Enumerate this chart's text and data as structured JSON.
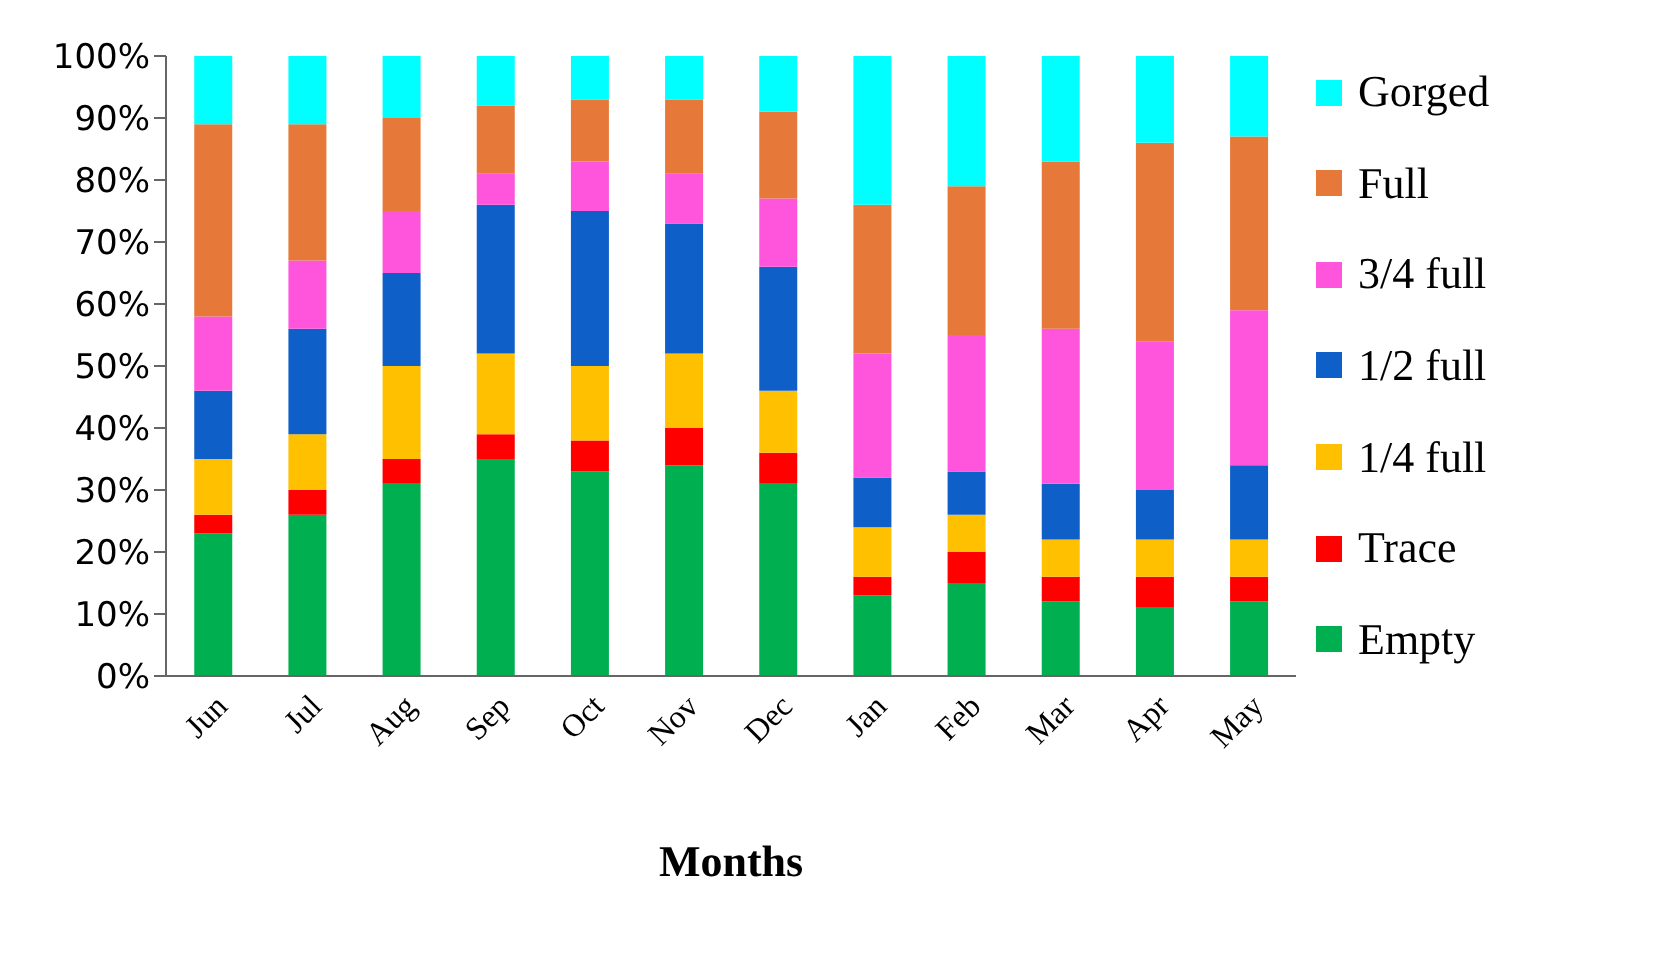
{
  "chart_data": {
    "type": "bar",
    "stacked": true,
    "xlabel": "Months",
    "categories": [
      "Jun",
      "Jul",
      "Aug",
      "Sep",
      "Oct",
      "Nov",
      "Dec",
      "Jan",
      "Feb",
      "Mar",
      "Apr",
      "May"
    ],
    "series": [
      {
        "name": "Empty",
        "color": "#00b050",
        "values": [
          23,
          26,
          31,
          35,
          33,
          34,
          31,
          13,
          15,
          12,
          11,
          12
        ]
      },
      {
        "name": "Trace",
        "color": "#ff0000",
        "values": [
          3,
          4,
          4,
          4,
          5,
          6,
          5,
          3,
          5,
          4,
          5,
          4
        ]
      },
      {
        "name": "1/4 full",
        "color": "#ffc000",
        "values": [
          9,
          9,
          15,
          13,
          12,
          12,
          10,
          8,
          6,
          6,
          6,
          6
        ]
      },
      {
        "name": "1/2 full",
        "color": "#0f5fc8",
        "values": [
          11,
          17,
          15,
          24,
          25,
          21,
          20,
          8,
          7,
          9,
          8,
          12
        ]
      },
      {
        "name": "3/4 full",
        "color": "#ff55dd",
        "values": [
          12,
          11,
          10,
          5,
          8,
          8,
          11,
          20,
          22,
          25,
          24,
          25
        ]
      },
      {
        "name": "Full",
        "color": "#e6783a",
        "values": [
          31,
          22,
          15,
          11,
          10,
          12,
          14,
          24,
          24,
          27,
          32,
          28
        ]
      },
      {
        "name": "Gorged",
        "color": "#00ffff",
        "values": [
          11,
          11,
          10,
          8,
          7,
          7,
          9,
          24,
          21,
          17,
          14,
          13
        ]
      }
    ],
    "ylim": [
      0,
      100
    ],
    "yticks": [
      {
        "value": 0,
        "label": "0%"
      },
      {
        "value": 10,
        "label": "10%"
      },
      {
        "value": 20,
        "label": "20%"
      },
      {
        "value": 30,
        "label": "30%"
      },
      {
        "value": 40,
        "label": "40%"
      },
      {
        "value": 50,
        "label": "50%"
      },
      {
        "value": 60,
        "label": "60%"
      },
      {
        "value": 70,
        "label": "70%"
      },
      {
        "value": 80,
        "label": "80%"
      },
      {
        "value": 90,
        "label": "90%"
      },
      {
        "value": 100,
        "label": "100%"
      }
    ],
    "legend": "right"
  }
}
